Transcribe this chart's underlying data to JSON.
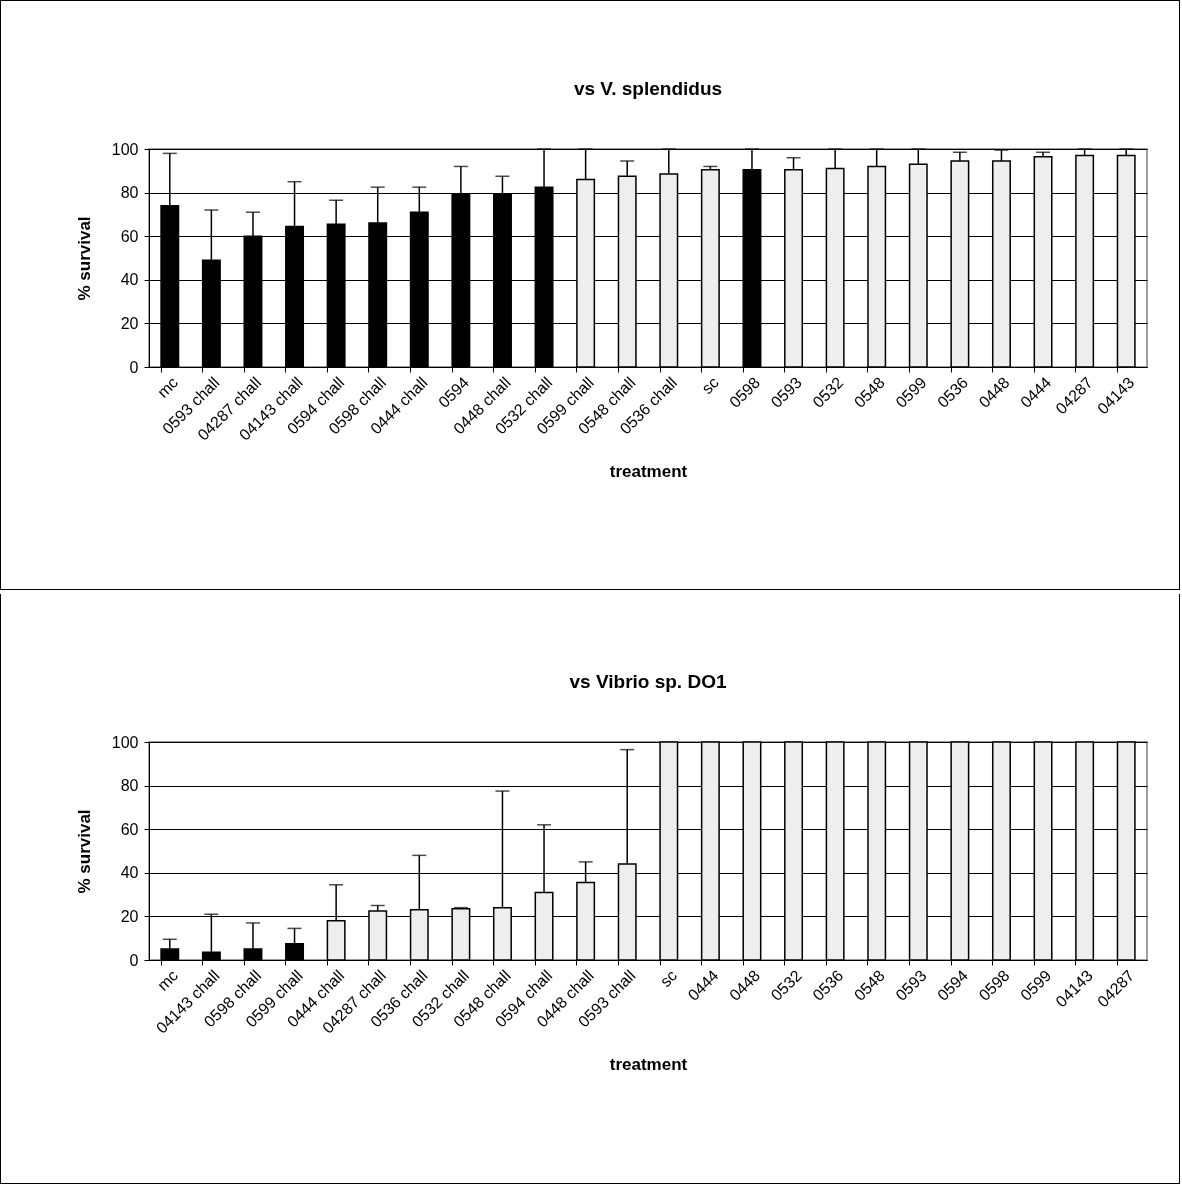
{
  "chart_data": [
    {
      "type": "bar",
      "title": "vs V. splendidus",
      "xlabel": "treatment",
      "ylabel": "% survival",
      "categories": [
        "mc",
        "0593 chall",
        "04287 chall",
        "04143 chall",
        "0594 chall",
        "0598 chall",
        "0444 chall",
        "0594",
        "0448 chall",
        "0532 chall",
        "0599 chall",
        "0548 chall",
        "0536 chall",
        "sc",
        "0598",
        "0593",
        "0532",
        "0548",
        "0599",
        "0536",
        "0448",
        "0444",
        "04287",
        "04143"
      ],
      "values": [
        74,
        49,
        60,
        64.5,
        65.5,
        66,
        71,
        79,
        79,
        82.5,
        86,
        87.5,
        88.5,
        90.5,
        90.5,
        90.5,
        91,
        92,
        93,
        94.5,
        94.5,
        96.5,
        97,
        97
      ],
      "errors": [
        [
          74,
          98
        ],
        [
          49,
          72
        ],
        [
          60,
          71
        ],
        [
          64.5,
          85
        ],
        [
          65.5,
          76.5
        ],
        [
          66,
          82.5
        ],
        [
          71,
          82.5
        ],
        [
          79,
          92
        ],
        [
          79,
          87.5
        ],
        [
          82.5,
          100
        ],
        [
          86,
          100
        ],
        [
          87.5,
          94.5
        ],
        [
          88.5,
          100
        ],
        [
          90.5,
          92
        ],
        [
          90.5,
          100
        ],
        [
          90.5,
          96
        ],
        [
          91,
          100
        ],
        [
          92,
          100
        ],
        [
          93,
          100
        ],
        [
          94.5,
          98.5
        ],
        [
          94.5,
          99.5
        ],
        [
          96.5,
          98.5
        ],
        [
          97,
          100
        ],
        [
          97,
          100
        ]
      ],
      "colors": [
        "#000000",
        "#000000",
        "#000000",
        "#000000",
        "#000000",
        "#000000",
        "#000000",
        "#000000",
        "#000000",
        "#000000",
        "#eeeeee",
        "#eeeeee",
        "#eeeeee",
        "#eeeeee",
        "#000000",
        "#eeeeee",
        "#eeeeee",
        "#eeeeee",
        "#eeeeee",
        "#eeeeee",
        "#eeeeee",
        "#eeeeee",
        "#eeeeee",
        "#eeeeee"
      ],
      "ylim": [
        0,
        100
      ],
      "yticks": [
        0,
        20,
        40,
        60,
        80,
        100
      ],
      "grid": "y"
    },
    {
      "type": "bar",
      "title": "vs Vibrio sp. DO1",
      "xlabel": "treatment",
      "ylabel": "% survival",
      "categories": [
        "mc",
        "04143 chall",
        "0598 chall",
        "0599 chall",
        "0444 chall",
        "04287 chall",
        "0536 chall",
        "0532 chall",
        "0548 chall",
        "0594 chall",
        "0448 chall",
        "0593 chall",
        "sc",
        "0444",
        "0448",
        "0532",
        "0536",
        "0548",
        "0593",
        "0594",
        "0598",
        "0599",
        "04143",
        "04287"
      ],
      "values": [
        5,
        3.5,
        5,
        7.5,
        18,
        22.5,
        23,
        23.5,
        24,
        31,
        35.5,
        44,
        100,
        100,
        100,
        100,
        100,
        100,
        100,
        100,
        100,
        100,
        100,
        100
      ],
      "errors": [
        [
          5,
          9.5
        ],
        [
          3.5,
          21
        ],
        [
          5,
          17
        ],
        [
          7.5,
          14.5
        ],
        [
          18,
          34.5
        ],
        [
          22.5,
          25
        ],
        [
          23,
          48
        ],
        [
          23.5,
          24
        ],
        [
          24,
          77.5
        ],
        [
          31,
          62
        ],
        [
          35.5,
          45
        ],
        [
          44,
          96.5
        ],
        null,
        null,
        null,
        null,
        null,
        null,
        null,
        null,
        null,
        null,
        null,
        null
      ],
      "colors": [
        "#000000",
        "#000000",
        "#000000",
        "#000000",
        "#eeeeee",
        "#eeeeee",
        "#eeeeee",
        "#eeeeee",
        "#eeeeee",
        "#eeeeee",
        "#eeeeee",
        "#eeeeee",
        "#eeeeee",
        "#eeeeee",
        "#eeeeee",
        "#eeeeee",
        "#eeeeee",
        "#eeeeee",
        "#eeeeee",
        "#eeeeee",
        "#eeeeee",
        "#eeeeee",
        "#eeeeee",
        "#eeeeee"
      ],
      "ylim": [
        0,
        100
      ],
      "yticks": [
        0,
        20,
        40,
        60,
        80,
        100
      ],
      "grid": "y"
    }
  ]
}
